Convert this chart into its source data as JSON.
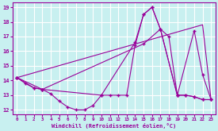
{
  "xlabel": "Windchill (Refroidissement éolien,°C)",
  "bg_color": "#c8f0f0",
  "grid_color": "#ffffff",
  "line_color": "#990099",
  "xlim": [
    -0.5,
    23.5
  ],
  "ylim": [
    11.7,
    19.3
  ],
  "yticks": [
    12,
    13,
    14,
    15,
    16,
    17,
    18,
    19
  ],
  "xticks": [
    0,
    1,
    2,
    3,
    4,
    5,
    6,
    7,
    8,
    9,
    10,
    11,
    12,
    13,
    14,
    15,
    16,
    17,
    18,
    19,
    20,
    21,
    22,
    23
  ],
  "line1_x": [
    0,
    1,
    2,
    3,
    4,
    5,
    6,
    7,
    8,
    9,
    10,
    11,
    12,
    13,
    14,
    15,
    16,
    17,
    18,
    19,
    20,
    21,
    22,
    23
  ],
  "line1_y": [
    14.2,
    13.8,
    13.5,
    13.4,
    13.1,
    12.6,
    12.2,
    12.0,
    12.0,
    12.3,
    13.0,
    13.0,
    13.0,
    13.0,
    16.4,
    18.5,
    19.0,
    17.5,
    17.0,
    13.0,
    13.0,
    12.9,
    12.7,
    12.7
  ],
  "line2_x": [
    0,
    2,
    3,
    10,
    14,
    15,
    16,
    17,
    19,
    20,
    21,
    22,
    23
  ],
  "line2_y": [
    14.2,
    13.5,
    13.4,
    13.0,
    16.6,
    18.5,
    19.0,
    17.5,
    13.0,
    13.0,
    12.9,
    12.7,
    12.7
  ],
  "line3_x": [
    0,
    3,
    15,
    17,
    19,
    21,
    22,
    23
  ],
  "line3_y": [
    14.2,
    13.4,
    16.5,
    17.5,
    13.0,
    17.4,
    14.4,
    12.7
  ],
  "line4_x": [
    0,
    22,
    23
  ],
  "line4_y": [
    14.2,
    17.8,
    12.7
  ]
}
